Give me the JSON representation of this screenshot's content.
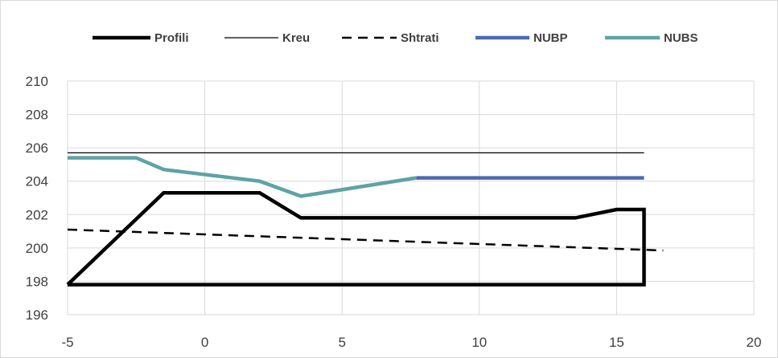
{
  "chart_data": {
    "type": "line",
    "title": "",
    "xlabel": "",
    "ylabel": "",
    "xlim": [
      -5,
      20
    ],
    "ylim": [
      196,
      210
    ],
    "x_ticks": [
      -5,
      0,
      5,
      10,
      15,
      20
    ],
    "y_ticks": [
      196,
      198,
      200,
      202,
      204,
      206,
      208,
      210
    ],
    "grid": true,
    "legend_position": "top",
    "series": [
      {
        "name": "Profili",
        "color": "#000000",
        "style": "solid-thick",
        "points": [
          [
            -5,
            197.8
          ],
          [
            -1.5,
            203.3
          ],
          [
            2,
            203.3
          ],
          [
            3.5,
            201.8
          ],
          [
            13.5,
            201.8
          ],
          [
            15,
            202.3
          ],
          [
            16,
            202.3
          ],
          [
            16,
            197.8
          ],
          [
            -5,
            197.8
          ]
        ]
      },
      {
        "name": "Kreu",
        "color": "#000000",
        "style": "solid-thin",
        "points": [
          [
            -5,
            205.7
          ],
          [
            16,
            205.7
          ]
        ]
      },
      {
        "name": "Shtrati",
        "color": "#000000",
        "style": "dashed",
        "points": [
          [
            -5,
            201.1
          ],
          [
            16.7,
            199.85
          ]
        ]
      },
      {
        "name": "NUBP",
        "color": "#4a6bb0",
        "style": "solid",
        "points": [
          [
            7.7,
            204.2
          ],
          [
            16,
            204.2
          ]
        ]
      },
      {
        "name": "NUBS",
        "color": "#5ea3a6",
        "style": "solid",
        "points": [
          [
            -5,
            205.4
          ],
          [
            -2.5,
            205.4
          ],
          [
            -1.5,
            204.7
          ],
          [
            2,
            204
          ],
          [
            3.5,
            203.1
          ],
          [
            7.7,
            204.2
          ]
        ]
      }
    ]
  }
}
